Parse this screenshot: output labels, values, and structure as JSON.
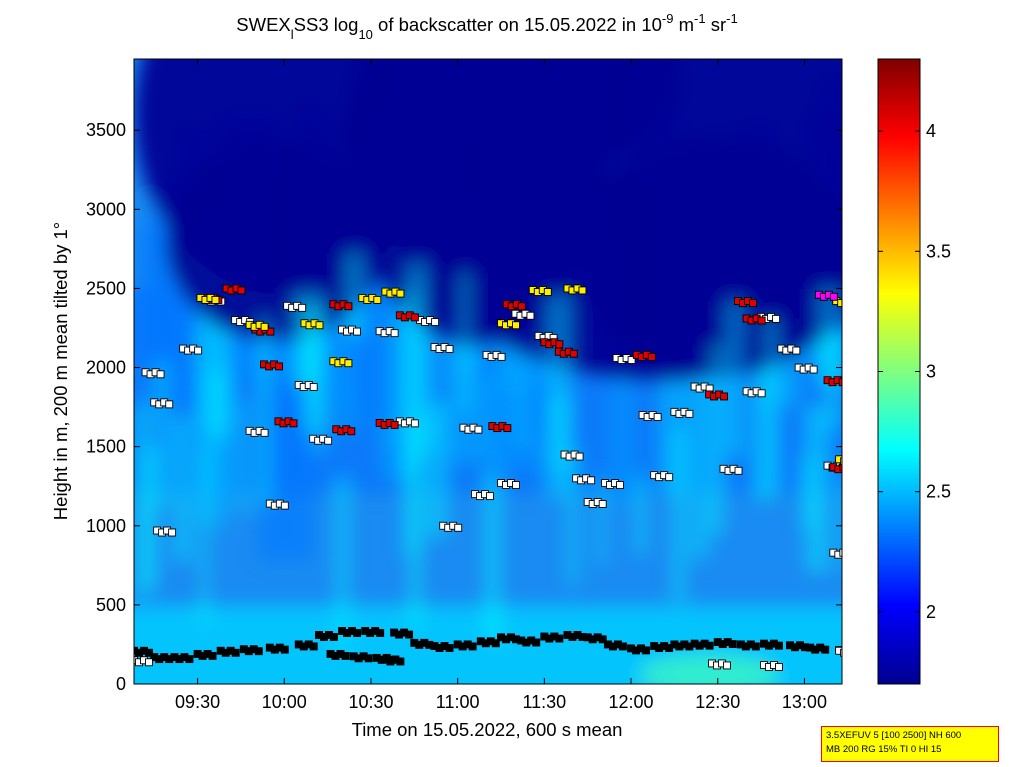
{
  "chart_data": {
    "type": "heatmap",
    "title": {
      "part1": "SWEX",
      "part1_sub": "l",
      "part2": "SS3 log",
      "part2_sub": "10",
      "part3": " of backscatter on 15.05.2022 in 10",
      "sup1": "-9",
      "part4": " m",
      "sup2": "-1",
      "part5": " sr",
      "sup3": "-1"
    },
    "xlabel": "Time on 15.05.2022, 600 s mean",
    "ylabel": "Height in m, 200 m mean tilted by 1°",
    "xlim": [
      "09:08",
      "13:13"
    ],
    "ylim": [
      0,
      3950
    ],
    "xticks": [
      "09:30",
      "10:00",
      "10:30",
      "11:00",
      "11:30",
      "12:00",
      "12:30",
      "13:00"
    ],
    "yticks": [
      0,
      500,
      1000,
      1500,
      2000,
      2500,
      3000,
      3500
    ],
    "colorbar": {
      "min": 1.7,
      "max": 4.3,
      "ticks": [
        2,
        2.5,
        3,
        3.5,
        4
      ],
      "colormap": "jet"
    },
    "layers": {
      "clear_air_above": {
        "from_m": 2300,
        "to_m": 3950,
        "log_backscatter": 1.75
      },
      "cloud_tops": {
        "from_m": 1200,
        "to_m": 2500,
        "log_backscatter": 2.3
      },
      "boundary_layer": {
        "from_m": 0,
        "to_m": 500,
        "log_backscatter": 2.55
      }
    },
    "series": [
      {
        "marker": "black square",
        "points": [
          [
            "09:08",
            210
          ],
          [
            "09:15",
            170
          ],
          [
            "09:22",
            170
          ],
          [
            "09:30",
            190
          ],
          [
            "09:38",
            210
          ],
          [
            "09:46",
            220
          ],
          [
            "09:55",
            230
          ],
          [
            "10:05",
            250
          ],
          [
            "10:12",
            310
          ],
          [
            "10:20",
            335
          ],
          [
            "10:28",
            335
          ],
          [
            "10:38",
            325
          ],
          [
            "10:45",
            260
          ],
          [
            "10:52",
            240
          ],
          [
            "11:00",
            250
          ],
          [
            "11:08",
            270
          ],
          [
            "11:15",
            295
          ],
          [
            "11:22",
            275
          ],
          [
            "11:30",
            300
          ],
          [
            "11:38",
            310
          ],
          [
            "11:45",
            295
          ],
          [
            "11:52",
            250
          ],
          [
            "12:00",
            225
          ],
          [
            "12:08",
            240
          ],
          [
            "12:15",
            250
          ],
          [
            "12:22",
            255
          ],
          [
            "12:30",
            265
          ],
          [
            "12:38",
            250
          ],
          [
            "12:46",
            255
          ],
          [
            "12:55",
            245
          ],
          [
            "13:02",
            230
          ],
          [
            "13:12",
            215
          ],
          [
            "10:16",
            190
          ],
          [
            "10:24",
            175
          ],
          [
            "10:32",
            165
          ],
          [
            "10:35",
            155
          ]
        ]
      },
      {
        "marker": "white square",
        "points": [
          [
            "09:12",
            1970
          ],
          [
            "09:15",
            1780
          ],
          [
            "09:16",
            970
          ],
          [
            "09:25",
            2120
          ],
          [
            "09:33",
            2430
          ],
          [
            "09:43",
            2300
          ],
          [
            "09:48",
            1600
          ],
          [
            "09:55",
            1140
          ],
          [
            "10:01",
            2390
          ],
          [
            "10:05",
            1890
          ],
          [
            "10:10",
            1550
          ],
          [
            "10:20",
            2240
          ],
          [
            "10:33",
            2230
          ],
          [
            "10:40",
            1660
          ],
          [
            "10:47",
            2300
          ],
          [
            "10:52",
            2130
          ],
          [
            "11:02",
            1620
          ],
          [
            "11:06",
            1200
          ],
          [
            "11:10",
            2080
          ],
          [
            "11:15",
            1270
          ],
          [
            "11:20",
            2340
          ],
          [
            "11:28",
            2200
          ],
          [
            "11:37",
            1450
          ],
          [
            "11:41",
            1300
          ],
          [
            "11:45",
            1150
          ],
          [
            "11:55",
            2060
          ],
          [
            "12:04",
            1700
          ],
          [
            "12:08",
            1320
          ],
          [
            "12:15",
            1720
          ],
          [
            "12:22",
            1880
          ],
          [
            "12:32",
            1360
          ],
          [
            "12:40",
            1850
          ],
          [
            "12:45",
            2320
          ],
          [
            "12:52",
            2120
          ],
          [
            "12:58",
            2000
          ],
          [
            "13:08",
            1380
          ],
          [
            "13:10",
            830
          ],
          [
            "13:12",
            210
          ],
          [
            "12:28",
            130
          ],
          [
            "12:46",
            120
          ],
          [
            "09:08",
            150
          ],
          [
            "11:51",
            1270
          ],
          [
            "10:55",
            1000
          ]
        ]
      },
      {
        "marker": "red square",
        "points": [
          [
            "09:32",
            2440
          ],
          [
            "09:40",
            2500
          ],
          [
            "09:50",
            2240
          ],
          [
            "09:53",
            2020
          ],
          [
            "09:58",
            1660
          ],
          [
            "10:17",
            2400
          ],
          [
            "10:33",
            1650
          ],
          [
            "10:40",
            2330
          ],
          [
            "11:17",
            2400
          ],
          [
            "11:30",
            2160
          ],
          [
            "11:35",
            2100
          ],
          [
            "12:02",
            2080
          ],
          [
            "12:27",
            1830
          ],
          [
            "12:37",
            2420
          ],
          [
            "12:40",
            2310
          ],
          [
            "13:08",
            1920
          ],
          [
            "13:10",
            1370
          ],
          [
            "11:12",
            1630
          ],
          [
            "10:18",
            1610
          ]
        ]
      },
      {
        "marker": "yellow square",
        "points": [
          [
            "09:31",
            2440
          ],
          [
            "10:07",
            2280
          ],
          [
            "10:17",
            2040
          ],
          [
            "10:27",
            2440
          ],
          [
            "10:35",
            2480
          ],
          [
            "11:15",
            2280
          ],
          [
            "11:26",
            2490
          ],
          [
            "11:38",
            2500
          ],
          [
            "13:11",
            2420
          ],
          [
            "13:12",
            1420
          ],
          [
            "09:48",
            2270
          ]
        ]
      },
      {
        "marker": "magenta square",
        "points": [
          [
            "13:05",
            2460
          ]
        ]
      }
    ]
  },
  "info_box": {
    "line1": "3.5XEFUV 5 [100 2500] NH 600",
    "line2": "MB 200 RG 15% TI 0 HI 15"
  }
}
